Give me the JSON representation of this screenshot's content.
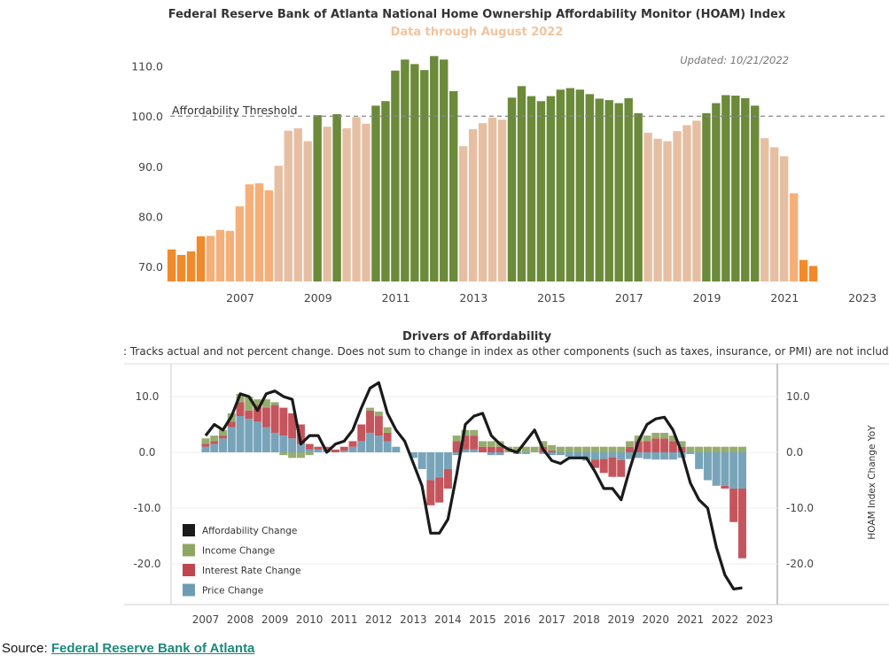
{
  "chart_data": [
    {
      "type": "bar",
      "title": "Federal Reserve Bank of Atlanta National Home Ownership Affordability Monitor (HOAM) Index",
      "subtitle": "Data through August 2022",
      "updated": "Updated: 10/21/2022",
      "threshold": {
        "label": "Affordability Threshold",
        "value": 100
      },
      "xlim": [
        2006.0,
        2023.5
      ],
      "ylim": [
        67,
        114
      ],
      "yticks": [
        70,
        80,
        90,
        100,
        110
      ],
      "ytick_labels": [
        "70.0",
        "80.0",
        "90.0",
        "100.0",
        "110.0"
      ],
      "xticks": [
        2007,
        2009,
        2011,
        2013,
        2015,
        2017,
        2019,
        2021,
        2023
      ],
      "colors": {
        "orange": "#f08a2a",
        "light_orange": "#f5b07a",
        "tan": "#e6bfa3",
        "green": "#6b8a3a",
        "threshold": "#888888"
      },
      "x": [
        2006.0,
        2006.25,
        2006.5,
        2006.75,
        2007.0,
        2007.25,
        2007.5,
        2007.75,
        2008.0,
        2008.25,
        2008.5,
        2008.75,
        2009.0,
        2009.25,
        2009.5,
        2009.75,
        2010.0,
        2010.25,
        2010.5,
        2010.75,
        2011.0,
        2011.25,
        2011.5,
        2011.75,
        2012.0,
        2012.25,
        2012.5,
        2012.75,
        2013.0,
        2013.25,
        2013.5,
        2013.75,
        2014.0,
        2014.25,
        2014.5,
        2014.75,
        2015.0,
        2015.25,
        2015.5,
        2015.75,
        2016.0,
        2016.25,
        2016.5,
        2016.75,
        2017.0,
        2017.25,
        2017.5,
        2017.75,
        2018.0,
        2018.25,
        2018.5,
        2018.75,
        2019.0,
        2019.25,
        2019.5,
        2019.75,
        2020.0,
        2020.25,
        2020.5,
        2020.75,
        2021.0,
        2021.25,
        2021.5,
        2021.75,
        2022.0,
        2022.25,
        2022.5
      ],
      "values": [
        73.4,
        72.3,
        73.0,
        76.0,
        76.1,
        77.3,
        77.1,
        82.0,
        86.4,
        86.6,
        85.2,
        90.1,
        97.1,
        97.6,
        95.0,
        100.2,
        97.9,
        100.4,
        97.6,
        99.8,
        98.5,
        102.1,
        103.0,
        109.1,
        111.3,
        110.4,
        109.2,
        112.0,
        111.3,
        105.0,
        94.0,
        97.4,
        98.6,
        99.7,
        99.3,
        103.7,
        106.0,
        104.0,
        103.0,
        104.0,
        105.3,
        105.6,
        105.3,
        104.4,
        103.5,
        103.2,
        102.6,
        103.6,
        100.6,
        96.7,
        95.5,
        95.0,
        97.0,
        98.2,
        99.1,
        100.6,
        102.6,
        104.2,
        104.1,
        103.6,
        102.1,
        95.6,
        93.8,
        92.0,
        84.6,
        71.3,
        70.1
      ],
      "categories": [
        "orange",
        "orange",
        "orange",
        "orange",
        "light_orange",
        "light_orange",
        "light_orange",
        "light_orange",
        "light_orange",
        "light_orange",
        "light_orange",
        "tan",
        "tan",
        "tan",
        "tan",
        "green",
        "tan",
        "green",
        "tan",
        "tan",
        "tan",
        "green",
        "green",
        "green",
        "green",
        "green",
        "green",
        "green",
        "green",
        "green",
        "tan",
        "tan",
        "tan",
        "tan",
        "tan",
        "green",
        "green",
        "green",
        "green",
        "green",
        "green",
        "green",
        "green",
        "green",
        "green",
        "green",
        "green",
        "green",
        "green",
        "tan",
        "tan",
        "tan",
        "tan",
        "tan",
        "tan",
        "green",
        "green",
        "green",
        "green",
        "green",
        "green",
        "tan",
        "tan",
        "tan",
        "light_orange",
        "orange",
        "orange"
      ]
    },
    {
      "type": "bar",
      "title": "Drivers of Affordability",
      "note": ": Tracks actual and not percent change. Does not sum to change in index as other components (such as taxes, insurance, or PMI) are not included.",
      "ylabel": "HOAM Index Change YoY",
      "ylim": [
        -26,
        14
      ],
      "yticks": [
        10,
        0,
        -10,
        -20
      ],
      "ytick_labels": [
        "10.0",
        "0.0",
        "-10.0",
        "-20.0"
      ],
      "xlim": [
        2007.0,
        2023.6
      ],
      "xticks": [
        2007,
        2008,
        2009,
        2010,
        2011,
        2012,
        2013,
        2014,
        2015,
        2016,
        2017,
        2018,
        2019,
        2020,
        2021,
        2022,
        2023
      ],
      "legend": {
        "items": [
          {
            "label": "Affordability Change",
            "color": "#1a1a1a"
          },
          {
            "label": "Income Change",
            "color": "#8ea663"
          },
          {
            "label": "Interest Rate Change",
            "color": "#c0464e"
          },
          {
            "label": "Price Change",
            "color": "#6d9cb4"
          }
        ],
        "placement": "bottom-left"
      },
      "x": [
        2007.0,
        2007.25,
        2007.5,
        2007.75,
        2008.0,
        2008.25,
        2008.5,
        2008.75,
        2009.0,
        2009.25,
        2009.5,
        2009.75,
        2010.0,
        2010.25,
        2010.5,
        2010.75,
        2011.0,
        2011.25,
        2011.5,
        2011.75,
        2012.0,
        2012.25,
        2012.5,
        2012.75,
        2013.0,
        2013.25,
        2013.5,
        2013.75,
        2014.0,
        2014.25,
        2014.5,
        2014.75,
        2015.0,
        2015.25,
        2015.5,
        2015.75,
        2016.0,
        2016.25,
        2016.5,
        2016.75,
        2017.0,
        2017.25,
        2017.5,
        2017.75,
        2018.0,
        2018.25,
        2018.5,
        2018.75,
        2019.0,
        2019.25,
        2019.5,
        2019.75,
        2020.0,
        2020.25,
        2020.5,
        2020.75,
        2021.0,
        2021.25,
        2021.5,
        2021.75,
        2022.0,
        2022.25,
        2022.5
      ],
      "series": [
        {
          "name": "Price Change",
          "values": [
            1.0,
            1.5,
            2.5,
            4.5,
            6.5,
            6.0,
            5.5,
            4.5,
            3.5,
            3.0,
            2.5,
            1.5,
            0.5,
            0.5,
            0.5,
            0.0,
            0.3,
            1.0,
            2.0,
            3.5,
            3.0,
            2.0,
            1.0,
            0.0,
            -1.0,
            -3.0,
            -5.0,
            -4.5,
            -3.0,
            -0.5,
            0.5,
            0.5,
            0.0,
            -0.5,
            -0.5,
            0.0,
            -0.3,
            -0.3,
            0.0,
            -0.3,
            -0.5,
            -0.5,
            -0.8,
            -1.2,
            -1.5,
            -1.3,
            -1.2,
            -0.9,
            -1.4,
            -1.2,
            -1.0,
            -1.2,
            -1.3,
            -1.3,
            -1.3,
            -1.0,
            -0.3,
            -3.0,
            -5.0,
            -6.0,
            -6.0,
            -6.5,
            -6.5
          ]
        },
        {
          "name": "Interest Rate Change",
          "values": [
            0.5,
            0.5,
            0.5,
            1.0,
            2.5,
            1.5,
            3.0,
            3.5,
            5.0,
            5.0,
            4.5,
            3.5,
            1.0,
            0.5,
            0.5,
            0.5,
            0.7,
            1.0,
            3.0,
            4.0,
            3.5,
            1.5,
            0.0,
            0.0,
            0.0,
            0.0,
            -4.5,
            -4.5,
            -3.5,
            2.0,
            2.5,
            2.5,
            1.0,
            1.0,
            1.0,
            0.0,
            0.0,
            0.0,
            0.0,
            1.0,
            0.3,
            0.0,
            0.0,
            0.0,
            0.0,
            -1.5,
            -2.5,
            -3.5,
            -3.0,
            1.0,
            2.0,
            2.0,
            2.5,
            2.5,
            2.0,
            1.0,
            0.0,
            0.0,
            0.0,
            0.0,
            -0.5,
            -6.0,
            -12.5
          ]
        },
        {
          "name": "Income Change",
          "values": [
            1.0,
            1.0,
            1.0,
            1.5,
            1.5,
            2.5,
            1.0,
            1.5,
            0.5,
            -0.5,
            -1.0,
            -1.0,
            -0.5,
            0.0,
            0.0,
            0.0,
            0.0,
            0.0,
            0.0,
            0.5,
            0.8,
            1.0,
            0.0,
            0.0,
            0.0,
            0.0,
            0.0,
            0.0,
            0.0,
            1.0,
            1.0,
            1.0,
            1.0,
            1.0,
            1.0,
            1.0,
            1.0,
            1.0,
            1.0,
            1.0,
            1.0,
            1.0,
            1.0,
            1.0,
            1.0,
            1.0,
            1.0,
            1.0,
            1.0,
            1.0,
            1.0,
            1.0,
            1.0,
            1.0,
            1.0,
            1.0,
            1.0,
            1.0,
            1.0,
            1.0,
            1.0,
            1.0,
            1.0
          ]
        },
        {
          "name": "Affordability Change",
          "values": [
            3.0,
            5.0,
            4.0,
            6.5,
            10.5,
            10.0,
            7.5,
            10.5,
            11.0,
            10.0,
            9.5,
            1.5,
            3.0,
            3.0,
            0.0,
            1.5,
            2.0,
            4.0,
            8.0,
            11.5,
            12.5,
            7.0,
            4.0,
            2.0,
            -2.0,
            -6.0,
            -14.5,
            -14.5,
            -12.0,
            -4.0,
            5.0,
            6.5,
            7.0,
            3.0,
            1.5,
            0.5,
            0.0,
            2.0,
            4.0,
            0.5,
            -1.5,
            -2.0,
            -1.0,
            -1.0,
            -1.0,
            -3.5,
            -6.5,
            -6.5,
            -8.5,
            -3.0,
            2.0,
            5.0,
            6.0,
            6.3,
            4.0,
            0.0,
            -5.5,
            -8.5,
            -10.0,
            -17.0,
            -22.0,
            -24.5,
            -24.3
          ]
        }
      ]
    }
  ],
  "source": {
    "label": "Source:",
    "link_text": "Federal Reserve Bank of Atlanta"
  }
}
